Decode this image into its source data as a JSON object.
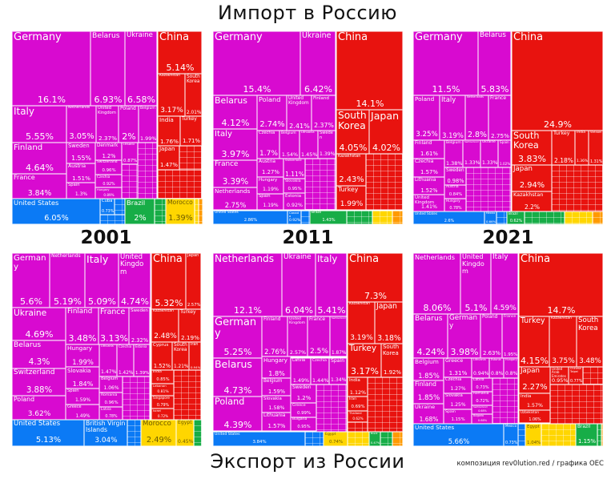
{
  "titles": {
    "import": "Импорт в Россию",
    "export": "Экспорт из России",
    "credit": "композиция rev0lution.red / графика OEC"
  },
  "colors": {
    "eu": "#d80ad0",
    "as": "#e8130f",
    "am": "#0b7af5",
    "sa": "#17ad47",
    "af": "#ffd600",
    "oc": "#ff9a00"
  },
  "treemaps": [
    {
      "kind": "import",
      "year": "2001",
      "tiles": [
        {
          "n": "Germany",
          "p": "16.1%",
          "r": "eu"
        },
        {
          "n": "Belarus",
          "p": "6.93%",
          "r": "eu"
        },
        {
          "n": "Ukraine",
          "p": "6.58%",
          "r": "eu"
        },
        {
          "n": "China",
          "p": "5.14%",
          "r": "as"
        },
        {
          "n": "Kazakhstan",
          "p": "3.17%",
          "r": "as"
        },
        {
          "n": "South Korea",
          "p": "2.01%",
          "r": "as"
        },
        {
          "n": "India",
          "p": "1.76%",
          "r": "as"
        },
        {
          "n": "Turkey",
          "p": "1.71%",
          "r": "as"
        },
        {
          "n": "Japan",
          "p": "1.47%",
          "r": "as"
        },
        {
          "n": "Italy",
          "p": "5.55%",
          "r": "eu"
        },
        {
          "n": "Finland",
          "p": "4.64%",
          "r": "eu"
        },
        {
          "n": "France",
          "p": "3.84%",
          "r": "eu"
        },
        {
          "n": "Netherlands",
          "p": "3.05%",
          "r": "eu"
        },
        {
          "n": "United Kingdom",
          "p": "2.37%",
          "r": "eu"
        },
        {
          "n": "Poland",
          "p": "2%",
          "r": "eu"
        },
        {
          "n": "Belgium",
          "p": "1.99%",
          "r": "eu"
        },
        {
          "n": "Sweden",
          "p": "1.55%",
          "r": "eu"
        },
        {
          "n": "Austria",
          "p": "1.51%",
          "r": "eu"
        },
        {
          "n": "Spain",
          "p": "1.3%",
          "r": "eu"
        },
        {
          "n": "Denmark",
          "p": "1.2%",
          "r": "eu"
        },
        {
          "n": "Switzerland",
          "p": "0.96%",
          "r": "eu"
        },
        {
          "n": "Czechia",
          "p": "0.92%",
          "r": "eu"
        },
        {
          "n": "Hungary",
          "p": "0.89%",
          "r": "eu"
        },
        {
          "n": "Lithuania",
          "p": "0.87%",
          "r": "eu"
        },
        {
          "n": "United States",
          "p": "6.05%",
          "r": "am"
        },
        {
          "n": "Cuba",
          "p": "0.73%",
          "r": "am"
        },
        {
          "n": "Brazil",
          "p": "2%",
          "r": "sa"
        },
        {
          "n": "Morocco",
          "p": "1.39%",
          "r": "af"
        }
      ]
    },
    {
      "kind": "import",
      "year": "2011",
      "tiles": [
        {
          "n": "Germany",
          "p": "15.4%",
          "r": "eu"
        },
        {
          "n": "Ukraine",
          "p": "6.42%",
          "r": "eu"
        },
        {
          "n": "China",
          "p": "14.1%",
          "r": "as"
        },
        {
          "n": "South Korea",
          "p": "4.05%",
          "r": "as"
        },
        {
          "n": "Japan",
          "p": "4.02%",
          "r": "as"
        },
        {
          "n": "Kazakhstan",
          "p": "2.43%",
          "r": "as"
        },
        {
          "n": "Turkey",
          "p": "1.99%",
          "r": "as"
        },
        {
          "n": "Belarus",
          "p": "4.12%",
          "r": "eu"
        },
        {
          "n": "Italy",
          "p": "3.97%",
          "r": "eu"
        },
        {
          "n": "France",
          "p": "3.39%",
          "r": "eu"
        },
        {
          "n": "Netherlands",
          "p": "2.75%",
          "r": "eu"
        },
        {
          "n": "Poland",
          "p": "2.74%",
          "r": "eu"
        },
        {
          "n": "United Kingdom",
          "p": "2.41%",
          "r": "eu"
        },
        {
          "n": "Finland",
          "p": "2.37%",
          "r": "eu"
        },
        {
          "n": "Czechia",
          "p": "1.7%",
          "r": "eu"
        },
        {
          "n": "Belgium",
          "p": "1.54%",
          "r": "eu"
        },
        {
          "n": "Lithuania",
          "p": "1.45%",
          "r": "eu"
        },
        {
          "n": "Sweden",
          "p": "1.39%",
          "r": "eu"
        },
        {
          "n": "Austria",
          "p": "1.27%",
          "r": "eu"
        },
        {
          "n": "Hungary",
          "p": "1.19%",
          "r": "eu"
        },
        {
          "n": "Spain",
          "p": "1.19%",
          "r": "eu"
        },
        {
          "n": "Switzerland",
          "p": "1.11%",
          "r": "eu"
        },
        {
          "n": "Slovakia",
          "p": "0.95%",
          "r": "eu"
        },
        {
          "n": "Estonia",
          "p": "0.92%",
          "r": "eu"
        },
        {
          "n": "United States",
          "p": "2.86%",
          "r": "am"
        },
        {
          "n": "Canada",
          "p": "0.92%",
          "r": "am"
        },
        {
          "n": "Brazil",
          "p": "1.43%",
          "r": "sa"
        }
      ]
    },
    {
      "kind": "import",
      "year": "2021",
      "tiles": [
        {
          "n": "Germany",
          "p": "11.5%",
          "r": "eu"
        },
        {
          "n": "Belarus",
          "p": "5.83%",
          "r": "eu"
        },
        {
          "n": "China",
          "p": "24.9%",
          "r": "as"
        },
        {
          "n": "South Korea",
          "p": "3.83%",
          "r": "as"
        },
        {
          "n": "Turkey",
          "p": "2.18%",
          "r": "as"
        },
        {
          "n": "India",
          "p": "1.36%",
          "r": "as"
        },
        {
          "n": "Vietnam",
          "p": "1.31%",
          "r": "as"
        },
        {
          "n": "Japan",
          "p": "2.94%",
          "r": "as"
        },
        {
          "n": "Kazakhstan",
          "p": "2.2%",
          "r": "as"
        },
        {
          "n": "Poland",
          "p": "3.25%",
          "r": "eu"
        },
        {
          "n": "Italy",
          "p": "3.19%",
          "r": "eu"
        },
        {
          "n": "Netherlands",
          "p": "2.8%",
          "r": "eu"
        },
        {
          "n": "France",
          "p": "2.75%",
          "r": "eu"
        },
        {
          "n": "Finland",
          "p": "1.61%",
          "r": "eu"
        },
        {
          "n": "Czechia",
          "p": "1.57%",
          "r": "eu"
        },
        {
          "n": "Lithuania",
          "p": "1.52%",
          "r": "eu"
        },
        {
          "n": "United Kingdom",
          "p": "1.41%",
          "r": "eu"
        },
        {
          "n": "Belgium",
          "p": "1.38%",
          "r": "eu"
        },
        {
          "n": "Switzerland",
          "p": "1.33%",
          "r": "eu"
        },
        {
          "n": "Ukraine",
          "p": "1.33%",
          "r": "eu"
        },
        {
          "n": "Spain",
          "p": "1.02%",
          "r": "eu"
        },
        {
          "n": "Sweden",
          "p": "0.98%",
          "r": "eu"
        },
        {
          "n": "Austria",
          "p": "0.84%",
          "r": "eu"
        },
        {
          "n": "Hungary",
          "p": "0.78%",
          "r": "eu"
        },
        {
          "n": "United States",
          "p": "2.6%",
          "r": "am"
        },
        {
          "n": "Mexico",
          "p": "0.66%",
          "r": "am"
        },
        {
          "n": "Brazil",
          "p": "0.62%",
          "r": "sa"
        }
      ]
    },
    {
      "kind": "export",
      "year": "2001",
      "tiles": [
        {
          "n": "Germany",
          "p": "5.6%",
          "r": "eu"
        },
        {
          "n": "Netherlands",
          "p": "5.19%",
          "r": "eu"
        },
        {
          "n": "Italy",
          "p": "5.09%",
          "r": "eu"
        },
        {
          "n": "United Kingdom",
          "p": "4.74%",
          "r": "eu"
        },
        {
          "n": "China",
          "p": "5.32%",
          "r": "as"
        },
        {
          "n": "Japan",
          "p": "2.57%",
          "r": "as"
        },
        {
          "n": "Kazakhstan",
          "p": "2.48%",
          "r": "as"
        },
        {
          "n": "Turkey",
          "p": "2.19%",
          "r": "as"
        },
        {
          "n": "Cyprus",
          "p": "1.52%",
          "r": "as"
        },
        {
          "n": "South Korea",
          "p": "1.21%",
          "r": "as"
        },
        {
          "n": "Iran",
          "p": "0.94%",
          "r": "as"
        },
        {
          "n": "India",
          "p": "0.85%",
          "r": "as"
        },
        {
          "n": "Lebanon",
          "p": "0.81%",
          "r": "as"
        },
        {
          "n": "Singapore",
          "p": "0.79%",
          "r": "as"
        },
        {
          "n": "Israel",
          "p": "0.72%",
          "r": "as"
        },
        {
          "n": "Ukraine",
          "p": "4.69%",
          "r": "eu"
        },
        {
          "n": "Belarus",
          "p": "4.3%",
          "r": "eu"
        },
        {
          "n": "Switzerland",
          "p": "3.88%",
          "r": "eu"
        },
        {
          "n": "Poland",
          "p": "3.62%",
          "r": "eu"
        },
        {
          "n": "Finland",
          "p": "3.48%",
          "r": "eu"
        },
        {
          "n": "France",
          "p": "3.13%",
          "r": "eu"
        },
        {
          "n": "Sweden",
          "p": "2.32%",
          "r": "eu"
        },
        {
          "n": "Hungary",
          "p": "1.99%",
          "r": "eu"
        },
        {
          "n": "Slovakia",
          "p": "1.84%",
          "r": "eu"
        },
        {
          "n": "Spain",
          "p": "1.59%",
          "r": "eu"
        },
        {
          "n": "Greece",
          "p": "1.49%",
          "r": "eu"
        },
        {
          "n": "Lithuania",
          "p": "1.47%",
          "r": "eu"
        },
        {
          "n": "Czechia",
          "p": "1.42%",
          "r": "eu"
        },
        {
          "n": "Estonia",
          "p": "1.39%",
          "r": "eu"
        },
        {
          "n": "Belgium",
          "p": "1.06%",
          "r": "eu"
        },
        {
          "n": "Romania",
          "p": "0.96%",
          "r": "eu"
        },
        {
          "n": "Latvia",
          "p": "0.78%",
          "r": "eu"
        },
        {
          "n": "United States",
          "p": "5.13%",
          "r": "am"
        },
        {
          "n": "British Virgin Islands",
          "p": "3.04%",
          "r": "am"
        },
        {
          "n": "Morocco",
          "p": "2.49%",
          "r": "af"
        },
        {
          "n": "Egypt",
          "p": "0.45%",
          "r": "af"
        }
      ]
    },
    {
      "kind": "export",
      "year": "2011",
      "tiles": [
        {
          "n": "Netherlands",
          "p": "12.1%",
          "r": "eu"
        },
        {
          "n": "Ukraine",
          "p": "6.04%",
          "r": "eu"
        },
        {
          "n": "Italy",
          "p": "5.41%",
          "r": "eu"
        },
        {
          "n": "China",
          "p": "7.3%",
          "r": "as"
        },
        {
          "n": "Kazakhstan",
          "p": "3.19%",
          "r": "as"
        },
        {
          "n": "Japan",
          "p": "3.18%",
          "r": "as"
        },
        {
          "n": "Turkey",
          "p": "3.17%",
          "r": "as"
        },
        {
          "n": "South Korea",
          "p": "1.92%",
          "r": "as"
        },
        {
          "n": "India",
          "p": "1.12%",
          "r": "as"
        },
        {
          "n": "Iran",
          "p": "0.69%",
          "r": "as"
        },
        {
          "n": "Thailand",
          "p": "0.62%",
          "r": "as"
        },
        {
          "n": "Germany",
          "p": "5.25%",
          "r": "eu"
        },
        {
          "n": "Belarus",
          "p": "4.73%",
          "r": "eu"
        },
        {
          "n": "Poland",
          "p": "4.39%",
          "r": "eu"
        },
        {
          "n": "Finland",
          "p": "2.76%",
          "r": "eu"
        },
        {
          "n": "United Kingdom",
          "p": "2.57%",
          "r": "eu"
        },
        {
          "n": "France",
          "p": "2.5%",
          "r": "eu"
        },
        {
          "n": "Switzerland",
          "p": "1.87%",
          "r": "eu"
        },
        {
          "n": "Hungary",
          "p": "1.8%",
          "r": "eu"
        },
        {
          "n": "Belgium",
          "p": "1.59%",
          "r": "eu"
        },
        {
          "n": "Slovakia",
          "p": "1.58%",
          "r": "eu"
        },
        {
          "n": "Lithuania",
          "p": "1.57%",
          "r": "eu"
        },
        {
          "n": "Latvia",
          "p": "1.49%",
          "r": "eu"
        },
        {
          "n": "Czechia",
          "p": "1.44%",
          "r": "eu"
        },
        {
          "n": "Spain",
          "p": "1.34%",
          "r": "eu"
        },
        {
          "n": "Sweden",
          "p": "1.2%",
          "r": "eu"
        },
        {
          "n": "Greece",
          "p": "0.99%",
          "r": "eu"
        },
        {
          "n": "Bulgaria",
          "p": "0.95%",
          "r": "eu"
        },
        {
          "n": "United States",
          "p": "3.84%",
          "r": "am"
        },
        {
          "n": "Egypt",
          "p": "0.74%",
          "r": "af"
        },
        {
          "n": "Brazil",
          "p": "0.47%",
          "r": "sa"
        }
      ]
    },
    {
      "kind": "export",
      "year": "2021",
      "tiles": [
        {
          "n": "Netherlands",
          "p": "8.06%",
          "r": "eu"
        },
        {
          "n": "United Kingdom",
          "p": "5.1%",
          "r": "eu"
        },
        {
          "n": "Italy",
          "p": "4.59%",
          "r": "eu"
        },
        {
          "n": "China",
          "p": "14.7%",
          "r": "as"
        },
        {
          "n": "Turkey",
          "p": "4.15%",
          "r": "as"
        },
        {
          "n": "Kazakhstan",
          "p": "3.75%",
          "r": "as"
        },
        {
          "n": "South Korea",
          "p": "3.48%",
          "r": "as"
        },
        {
          "n": "Japan",
          "p": "2.27%",
          "r": "as"
        },
        {
          "n": "India",
          "p": "1.57%",
          "r": "as"
        },
        {
          "n": "Uzbekistan",
          "p": "1.06%",
          "r": "as"
        },
        {
          "n": "United Arab Emirates",
          "p": "0.95%",
          "r": "as"
        },
        {
          "n": "Chinese Taipei",
          "p": "0.77%",
          "r": "as"
        },
        {
          "n": "Belarus",
          "p": "4.24%",
          "r": "eu"
        },
        {
          "n": "Germany",
          "p": "3.98%",
          "r": "eu"
        },
        {
          "n": "Poland",
          "p": "2.63%",
          "r": "eu"
        },
        {
          "n": "France",
          "p": "1.95%",
          "r": "eu"
        },
        {
          "n": "Belgium",
          "p": "1.85%",
          "r": "eu"
        },
        {
          "n": "Finland",
          "p": "1.85%",
          "r": "eu"
        },
        {
          "n": "Ukraine",
          "p": "1.68%",
          "r": "eu"
        },
        {
          "n": "Greece",
          "p": "1.31%",
          "r": "eu"
        },
        {
          "n": "Czechia",
          "p": "1.27%",
          "r": "eu"
        },
        {
          "n": "Slovakia",
          "p": "1.25%",
          "r": "eu"
        },
        {
          "n": "Spain",
          "p": "1.15%",
          "r": "eu"
        },
        {
          "n": "Lithuania",
          "p": "0.94%",
          "r": "eu"
        },
        {
          "n": "Estonia",
          "p": "0.8%",
          "r": "eu"
        },
        {
          "n": "Hungary",
          "p": "0.8%",
          "r": "eu"
        },
        {
          "n": "Latvia",
          "p": "0.73%",
          "r": "eu"
        },
        {
          "n": "Romania",
          "p": "0.72%",
          "r": "eu"
        },
        {
          "n": "Switzerland",
          "p": "0.68%",
          "r": "eu"
        },
        {
          "n": "Bulgaria",
          "p": "0.68%",
          "r": "eu"
        },
        {
          "n": "United States",
          "p": "5.66%",
          "r": "am"
        },
        {
          "n": "Mexico",
          "p": "0.73%",
          "r": "am"
        },
        {
          "n": "Egypt",
          "p": "1.04%",
          "r": "af"
        },
        {
          "n": "Brazil",
          "p": "1.15%",
          "r": "sa"
        }
      ]
    }
  ]
}
